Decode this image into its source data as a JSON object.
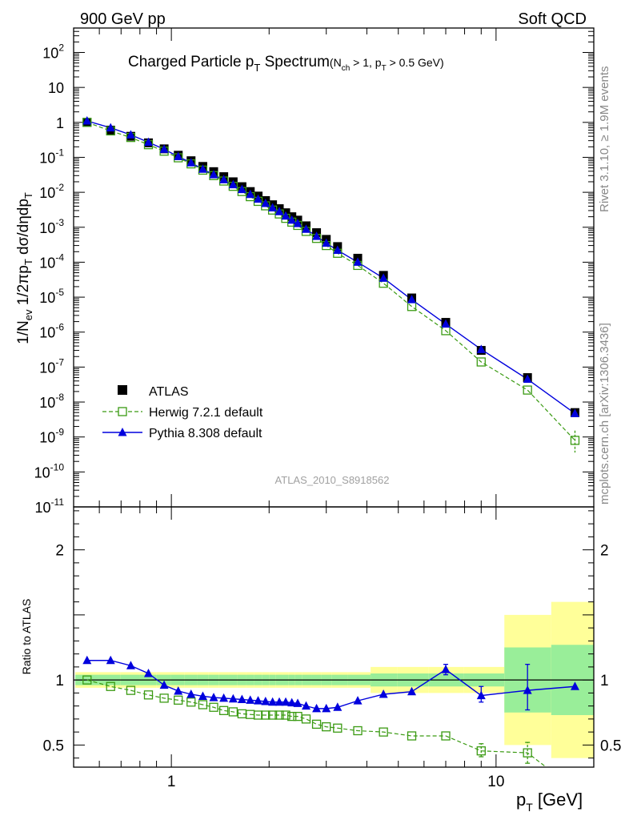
{
  "header": {
    "left": "900 GeV pp",
    "right": "Soft QCD"
  },
  "side_labels": {
    "rivet": "Rivet 3.1.10, ≥ 1.9M events",
    "mcplots": "mcplots.cern.ch [arXiv:1306.3436]"
  },
  "watermark": "ATLAS_2010_S8918562",
  "plot_title": {
    "main": "Charged Particle p",
    "main_sub": "T",
    "main_tail": " Spectrum",
    "cuts_open": "(N",
    "cuts_sub1": "ch",
    "cuts_mid": " > 1, p",
    "cuts_sub2": "T",
    "cuts_close": " > 0.5 GeV)"
  },
  "colors": {
    "atlas": "#000000",
    "herwig": "#3a9a12",
    "pythia": "#0000dd",
    "band_inner": "#99ee99",
    "band_outer": "#ffff99"
  },
  "chart_data": {
    "type": "scatter",
    "x_scale": "log",
    "xlim": [
      0.5,
      20
    ],
    "x_ticks": [
      "1",
      "10"
    ],
    "xlabel": "p_T [GeV]",
    "main_panel": {
      "ylabel": "1/N_ev 1/2πp_T dσ/dηdp_T",
      "y_scale": "log",
      "ylim": [
        1e-11,
        500
      ],
      "y_ticks": [
        "10^-11",
        "10^-10",
        "10^-9",
        "10^-8",
        "10^-7",
        "10^-6",
        "10^-5",
        "10^-4",
        "10^-3",
        "10^-2",
        "10^-1",
        "1",
        "10",
        "10^2"
      ],
      "legend_position": "bottom-left"
    },
    "ratio_panel": {
      "ylabel": "Ratio to ATLAS",
      "ylim": [
        0.33,
        2.33
      ],
      "y_ticks": [
        "0.5",
        "1",
        "2"
      ]
    },
    "x": [
      0.55,
      0.65,
      0.75,
      0.85,
      0.95,
      1.05,
      1.15,
      1.25,
      1.35,
      1.45,
      1.55,
      1.65,
      1.75,
      1.85,
      1.95,
      2.05,
      2.15,
      2.25,
      2.35,
      2.45,
      2.6,
      2.8,
      3.0,
      3.25,
      3.75,
      4.5,
      5.5,
      7.0,
      9.0,
      12.5,
      17.5
    ],
    "series": [
      {
        "name": "ATLAS",
        "values": [
          1.0,
          0.6,
          0.4,
          0.26,
          0.175,
          0.115,
          0.08,
          0.055,
          0.039,
          0.028,
          0.02,
          0.0145,
          0.0105,
          0.0078,
          0.0058,
          0.0044,
          0.0034,
          0.0026,
          0.002,
          0.0016,
          0.0011,
          0.0007,
          0.00045,
          0.00028,
          0.00013,
          4.2e-05,
          9.5e-06,
          1.9e-06,
          3e-07,
          5e-08,
          5e-09
        ],
        "ratio": [
          1,
          1,
          1,
          1,
          1,
          1,
          1,
          1,
          1,
          1,
          1,
          1,
          1,
          1,
          1,
          1,
          1,
          1,
          1,
          1,
          1,
          1,
          1,
          1,
          1,
          1,
          1,
          1,
          1,
          1,
          1
        ],
        "band_inner": [
          0.04,
          0.04,
          0.04,
          0.04,
          0.04,
          0.04,
          0.04,
          0.04,
          0.04,
          0.04,
          0.04,
          0.04,
          0.04,
          0.04,
          0.04,
          0.04,
          0.04,
          0.04,
          0.04,
          0.04,
          0.04,
          0.04,
          0.04,
          0.04,
          0.04,
          0.05,
          0.05,
          0.05,
          0.05,
          0.25,
          0.27
        ],
        "band_outer": [
          0.06,
          0.06,
          0.06,
          0.06,
          0.06,
          0.06,
          0.06,
          0.06,
          0.06,
          0.06,
          0.06,
          0.06,
          0.06,
          0.06,
          0.06,
          0.06,
          0.06,
          0.06,
          0.06,
          0.06,
          0.06,
          0.06,
          0.06,
          0.06,
          0.06,
          0.1,
          0.1,
          0.1,
          0.1,
          0.5,
          0.6
        ]
      },
      {
        "name": "Herwig 7.2.1 default",
        "values": [
          1.0,
          0.57,
          0.37,
          0.23,
          0.15,
          0.097,
          0.065,
          0.043,
          0.03,
          0.021,
          0.0148,
          0.0105,
          0.0075,
          0.0055,
          0.0041,
          0.0031,
          0.0024,
          0.0018,
          0.0014,
          0.00113,
          0.00076,
          0.00048,
          0.0003,
          0.00018,
          8.1e-05,
          2.5e-05,
          5.4e-06,
          1.1e-06,
          1.4e-07,
          2.2e-08,
          8e-10
        ],
        "ratio": [
          1.0,
          0.95,
          0.92,
          0.885,
          0.86,
          0.845,
          0.83,
          0.81,
          0.79,
          0.765,
          0.755,
          0.74,
          0.735,
          0.73,
          0.73,
          0.73,
          0.73,
          0.73,
          0.72,
          0.72,
          0.7,
          0.66,
          0.64,
          0.63,
          0.61,
          0.6,
          0.57,
          0.57,
          0.455,
          0.44,
          0.16
        ]
      },
      {
        "name": "Pythia 8.308 default",
        "values": [
          1.1,
          0.7,
          0.44,
          0.27,
          0.17,
          0.105,
          0.07,
          0.046,
          0.032,
          0.023,
          0.0165,
          0.012,
          0.0087,
          0.0064,
          0.0048,
          0.0036,
          0.0028,
          0.0021,
          0.0016,
          0.00128,
          0.00088,
          0.00055,
          0.00035,
          0.00022,
          0.0001,
          3.5e-05,
          8.5e-06,
          1.7e-06,
          3.2e-07,
          4.5e-08,
          4.7e-09
        ],
        "ratio": [
          1.15,
          1.15,
          1.11,
          1.05,
          0.96,
          0.915,
          0.89,
          0.875,
          0.865,
          0.86,
          0.855,
          0.85,
          0.845,
          0.84,
          0.835,
          0.83,
          0.83,
          0.83,
          0.825,
          0.82,
          0.8,
          0.78,
          0.78,
          0.79,
          0.84,
          0.89,
          0.91,
          1.08,
          0.88,
          0.92,
          0.95
        ]
      }
    ]
  }
}
